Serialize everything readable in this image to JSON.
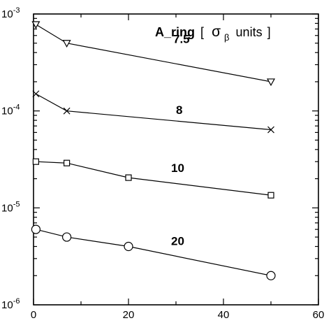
{
  "chart_data": {
    "type": "line",
    "title": {
      "bold": "A_ring",
      "bracket_open": "[",
      "sigma": "σ",
      "sigma_sub": "β",
      "units": "units",
      "bracket_close": "]"
    },
    "xlabel": "",
    "ylabel": "",
    "x_scale": "linear",
    "y_scale": "log",
    "xlim": [
      0,
      60
    ],
    "ylim": [
      1e-06,
      0.001
    ],
    "x_ticks": [
      0,
      20,
      40,
      60
    ],
    "x_tick_labels": [
      "0",
      "20",
      "40",
      "60"
    ],
    "y_ticks": [
      {
        "value": 1e-06,
        "base": "10",
        "exp": "-6"
      },
      {
        "value": 1e-05,
        "base": "10",
        "exp": "-5"
      },
      {
        "value": 0.0001,
        "base": "10",
        "exp": "-4"
      },
      {
        "value": 0.001,
        "base": "10",
        "exp": "-3"
      }
    ],
    "grid": false,
    "series": [
      {
        "name": "7.5",
        "marker": "triangle-down",
        "x": [
          0.5,
          7,
          50
        ],
        "y": [
          0.00078,
          0.0005,
          0.0002
        ]
      },
      {
        "name": "8",
        "marker": "x",
        "x": [
          0.5,
          7,
          50
        ],
        "y": [
          0.00015,
          0.0001,
          6.4e-05
        ]
      },
      {
        "name": "10",
        "marker": "square",
        "x": [
          0.5,
          7,
          20,
          50
        ],
        "y": [
          3e-05,
          2.9e-05,
          2.05e-05,
          1.35e-05
        ]
      },
      {
        "name": "20",
        "marker": "circle",
        "x": [
          0.5,
          7,
          20,
          50
        ],
        "y": [
          6e-06,
          5e-06,
          4e-06,
          2e-06
        ]
      }
    ]
  }
}
